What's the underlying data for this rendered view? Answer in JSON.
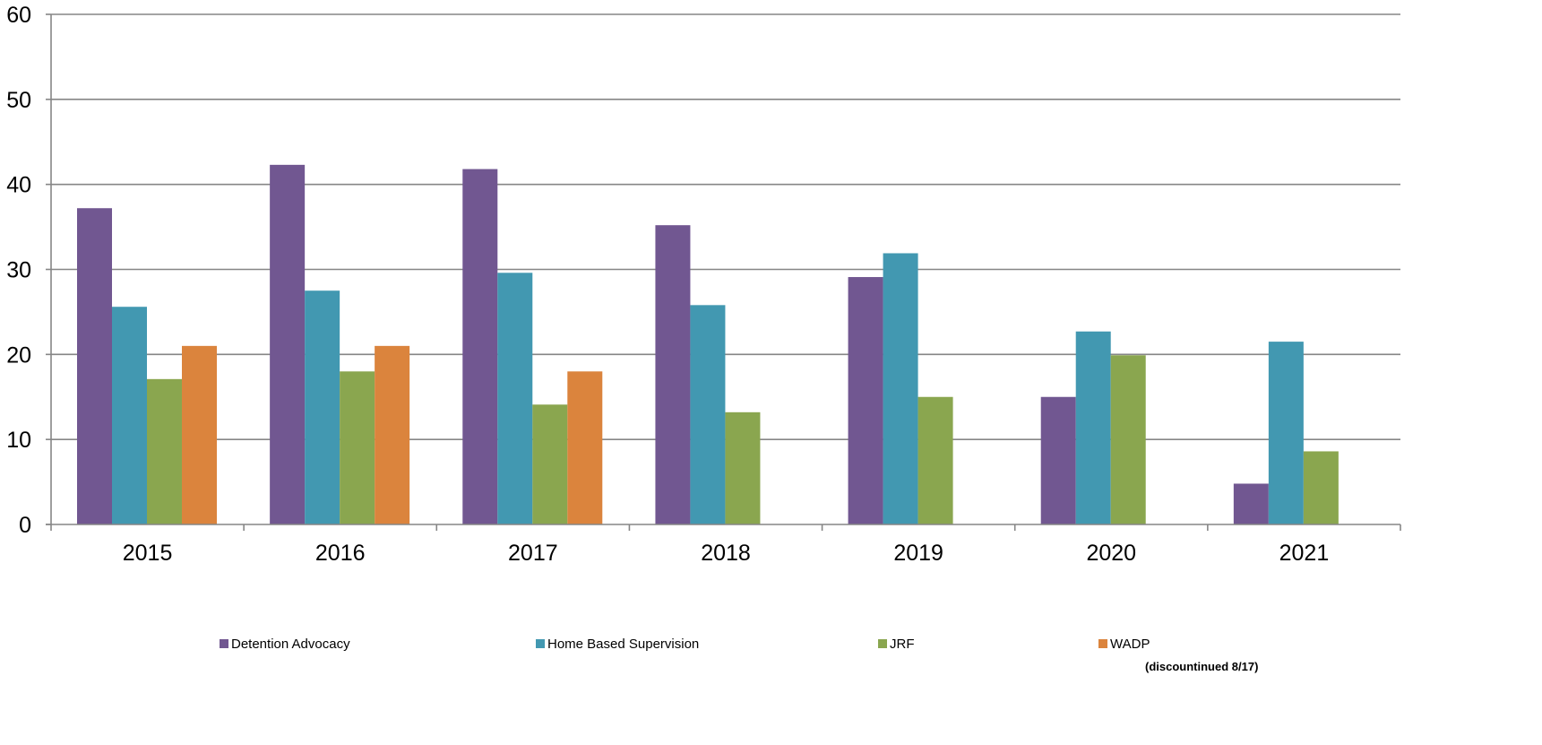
{
  "chart_data": {
    "type": "bar",
    "title": "",
    "xlabel": "",
    "ylabel": "",
    "ylim": [
      0,
      60
    ],
    "yticks": [
      "0",
      "10",
      "20",
      "30",
      "40",
      "50",
      "60"
    ],
    "grid": true,
    "legend_position": "bottom",
    "categories": [
      "2015",
      "2016",
      "2017",
      "2018",
      "2019",
      "2020",
      "2021"
    ],
    "series": [
      {
        "name": "Detention Advocacy",
        "color": "#715791",
        "values": [
          37.2,
          42.3,
          41.8,
          35.2,
          29.1,
          15,
          4.8
        ]
      },
      {
        "name": "Home Based Supervision",
        "color": "#4298B1",
        "values": [
          25.6,
          27.5,
          29.6,
          25.8,
          31.9,
          22.7,
          21.5
        ]
      },
      {
        "name": "JRF",
        "color": "#8AA64F",
        "values": [
          17.1,
          18,
          14.1,
          13.2,
          15,
          19.9,
          8.6
        ]
      },
      {
        "name": "WADP",
        "note": "(discountinued 8/17)",
        "color": "#DB843D",
        "values": [
          21,
          21,
          18,
          null,
          null,
          null,
          null
        ]
      }
    ]
  }
}
